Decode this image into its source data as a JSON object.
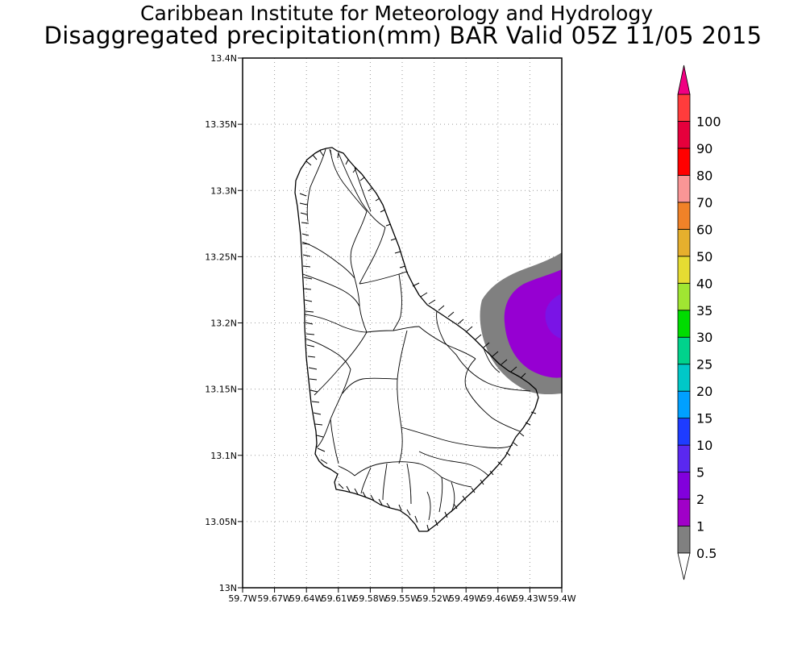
{
  "header": {
    "title": "Caribbean Institute for Meteorology and Hydrology",
    "subtitle": "Disaggregated precipitation(mm) BAR Valid 05Z 11/05 2015"
  },
  "map": {
    "region": "Barbados",
    "lon_range": [
      -59.7,
      -59.4
    ],
    "lat_range": [
      13.0,
      13.4
    ],
    "grid": true,
    "lat_ticks": [
      {
        "value": 13.4,
        "label": "13.4N"
      },
      {
        "value": 13.35,
        "label": "13.35N"
      },
      {
        "value": 13.3,
        "label": "13.3N"
      },
      {
        "value": 13.25,
        "label": "13.25N"
      },
      {
        "value": 13.2,
        "label": "13.2N"
      },
      {
        "value": 13.15,
        "label": "13.15N"
      },
      {
        "value": 13.1,
        "label": "13.1N"
      },
      {
        "value": 13.05,
        "label": "13.05N"
      },
      {
        "value": 13.0,
        "label": "13N"
      }
    ],
    "lon_ticks": [
      {
        "value": -59.7,
        "label": "59.7W"
      },
      {
        "value": -59.67,
        "label": "59.67W"
      },
      {
        "value": -59.64,
        "label": "59.64W"
      },
      {
        "value": -59.61,
        "label": "59.61W"
      },
      {
        "value": -59.58,
        "label": "59.58W"
      },
      {
        "value": -59.55,
        "label": "59.55W"
      },
      {
        "value": -59.52,
        "label": "59.52W"
      },
      {
        "value": -59.49,
        "label": "59.49W"
      },
      {
        "value": -59.46,
        "label": "59.46W"
      },
      {
        "value": -59.43,
        "label": "59.43W"
      },
      {
        "value": -59.4,
        "label": "59.4W"
      }
    ]
  },
  "colorbar": {
    "levels": [
      {
        "label": "0.5",
        "color": "#808080"
      },
      {
        "label": "1",
        "color": "#a000c8"
      },
      {
        "label": "2",
        "color": "#8200dc"
      },
      {
        "label": "5",
        "color": "#5a28f0"
      },
      {
        "label": "10",
        "color": "#1e3cff"
      },
      {
        "label": "15",
        "color": "#00a0ff"
      },
      {
        "label": "20",
        "color": "#00c8c8"
      },
      {
        "label": "25",
        "color": "#00d28c"
      },
      {
        "label": "30",
        "color": "#00dc00"
      },
      {
        "label": "35",
        "color": "#a0e632"
      },
      {
        "label": "40",
        "color": "#e6dc32"
      },
      {
        "label": "50",
        "color": "#e6af2d"
      },
      {
        "label": "60",
        "color": "#f08228"
      },
      {
        "label": "70",
        "color": "#fa9696"
      },
      {
        "label": "80",
        "color": "#ff0000"
      },
      {
        "label": "90",
        "color": "#e6003c"
      },
      {
        "label": "100",
        "color": "#ff3c3c"
      }
    ],
    "below_color": "#ffffff",
    "above_color": "#f00082"
  },
  "precip_field": {
    "shade_gray": "#808080",
    "shade_purple": "#9600d2",
    "shade_violet": "#7a14e6"
  }
}
